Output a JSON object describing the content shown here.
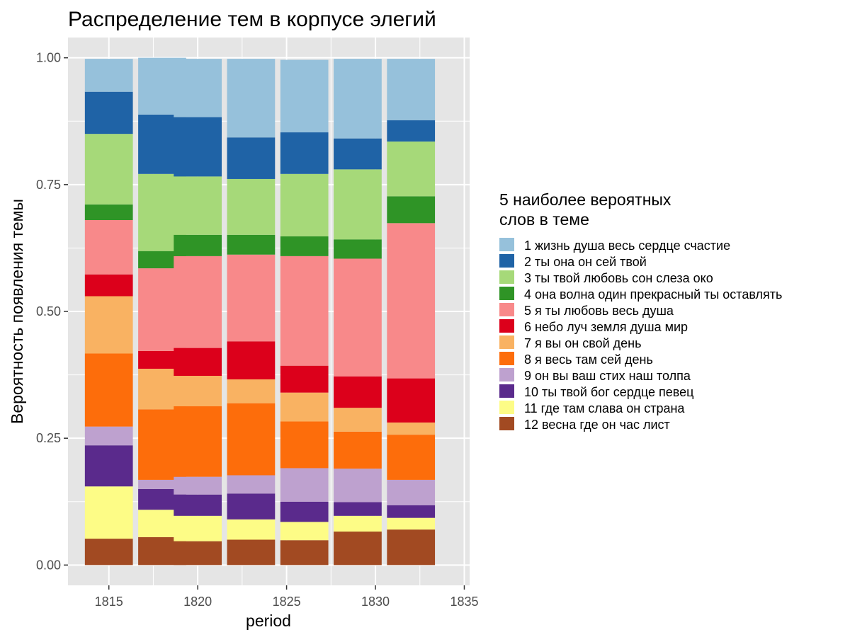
{
  "chart_data": {
    "type": "bar",
    "stacked": true,
    "title": "Распределение тем в корпусе элегий",
    "xlabel": "period",
    "ylabel": "Вероятность появления темы",
    "x": [
      1815,
      1818,
      1820,
      1823,
      1826,
      1829,
      1832
    ],
    "xlim": [
      1812.7,
      1835.3
    ],
    "x_ticks": [
      1815,
      1820,
      1825,
      1830,
      1835
    ],
    "x_tick_labels": [
      "1815",
      "1820",
      "1825",
      "1830",
      "1835"
    ],
    "ylim": [
      -0.04,
      1.04
    ],
    "y_ticks": [
      0,
      0.25,
      0.5,
      0.75,
      1
    ],
    "y_tick_labels": [
      "0.00",
      "0.25",
      "0.50",
      "0.75",
      "1.00"
    ],
    "grid": true,
    "background": "#e5e5e5",
    "legend_title": [
      "5 наиболее вероятных",
      "слов в теме"
    ],
    "legend_position": "right",
    "series": [
      {
        "name": "1 жизнь душа весь сердце счастие",
        "color": "#96C1DB",
        "values": [
          0.065,
          0.112,
          0.115,
          0.155,
          0.143,
          0.157,
          0.121
        ]
      },
      {
        "name": "2 ты она он сей твой",
        "color": "#1F63A6",
        "values": [
          0.083,
          0.117,
          0.117,
          0.082,
          0.082,
          0.061,
          0.042
        ]
      },
      {
        "name": "3 ты твой любовь сон слеза око",
        "color": "#A6D979",
        "values": [
          0.139,
          0.152,
          0.115,
          0.11,
          0.123,
          0.138,
          0.108
        ]
      },
      {
        "name": "4 она волна один прекрасный ты оставлять",
        "color": "#2F9426",
        "values": [
          0.031,
          0.034,
          0.042,
          0.039,
          0.039,
          0.038,
          0.053
        ]
      },
      {
        "name": "5 я ты любовь весь душа",
        "color": "#F8898A",
        "values": [
          0.107,
          0.163,
          0.181,
          0.171,
          0.216,
          0.232,
          0.306
        ]
      },
      {
        "name": "6 небо луч земля душа мир",
        "color": "#DC001B",
        "values": [
          0.043,
          0.035,
          0.055,
          0.075,
          0.053,
          0.062,
          0.087
        ]
      },
      {
        "name": "7 я вы он свой день",
        "color": "#F9B262",
        "values": [
          0.113,
          0.08,
          0.06,
          0.047,
          0.057,
          0.047,
          0.024
        ]
      },
      {
        "name": "8 я весь там сей день",
        "color": "#FD6D0B",
        "values": [
          0.144,
          0.139,
          0.139,
          0.142,
          0.092,
          0.073,
          0.089
        ]
      },
      {
        "name": "9 он вы ваш стих наш толпа",
        "color": "#BEA1CF",
        "values": [
          0.037,
          0.018,
          0.035,
          0.036,
          0.066,
          0.066,
          0.05
        ]
      },
      {
        "name": "10 ты твой бог сердце певец",
        "color": "#5A2A8C",
        "values": [
          0.081,
          0.041,
          0.042,
          0.051,
          0.04,
          0.027,
          0.025
        ]
      },
      {
        "name": "11 где там слава он страна",
        "color": "#FDFC86",
        "values": [
          0.103,
          0.054,
          0.05,
          0.04,
          0.036,
          0.031,
          0.023
        ]
      },
      {
        "name": "12 весна где он час лист",
        "color": "#A24A22",
        "values": [
          0.052,
          0.055,
          0.047,
          0.05,
          0.049,
          0.066,
          0.07
        ]
      }
    ]
  }
}
